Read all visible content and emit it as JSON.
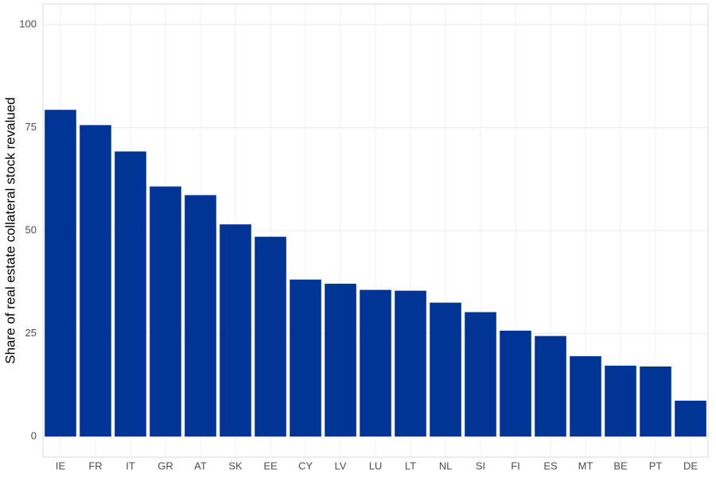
{
  "chart_data": {
    "type": "bar",
    "y_label": "Share of real estate collateral stock revalued",
    "categories": [
      "IE",
      "FR",
      "IT",
      "GR",
      "AT",
      "SK",
      "EE",
      "CY",
      "LV",
      "LU",
      "LT",
      "NL",
      "SI",
      "FI",
      "ES",
      "MT",
      "BE",
      "PT",
      "DE"
    ],
    "values": [
      79.3,
      75.6,
      69.2,
      60.7,
      58.6,
      51.5,
      48.5,
      38.1,
      37.1,
      35.6,
      35.4,
      32.5,
      30.2,
      25.7,
      24.4,
      19.5,
      17.2,
      17.0,
      8.7
    ],
    "color": "#003595",
    "ylim": [
      -5,
      105
    ],
    "yticks": [
      0,
      25,
      50,
      75,
      100
    ],
    "grid": true
  }
}
